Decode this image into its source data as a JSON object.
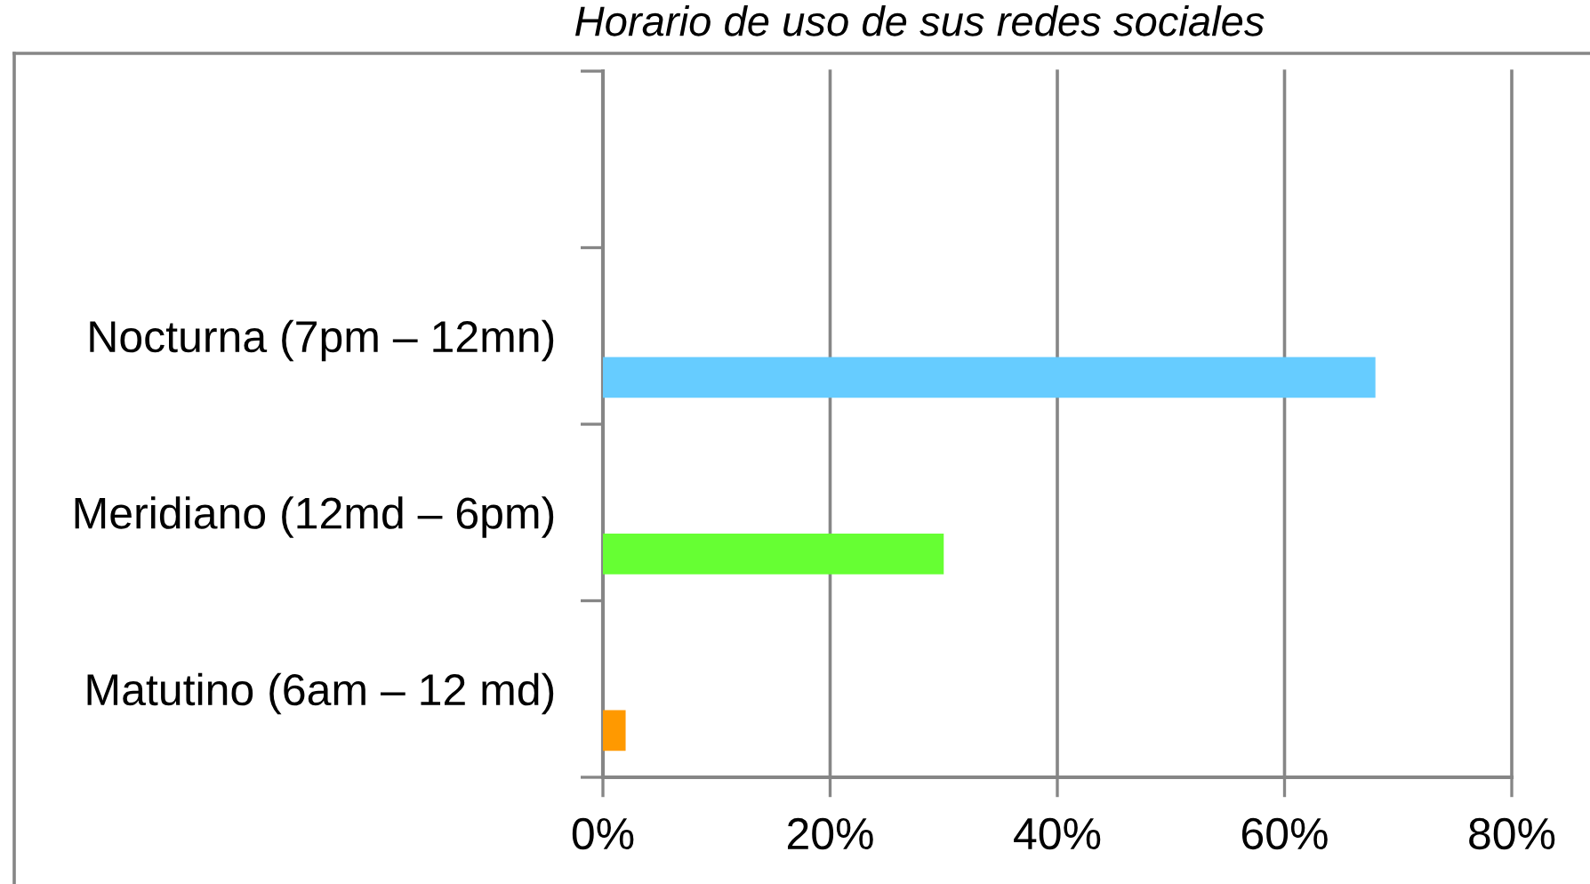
{
  "chart_data": {
    "type": "bar",
    "orientation": "horizontal",
    "title": "Horario de uso de sus redes sociales",
    "categories": [
      null,
      "Nocturna (7pm – 12mn)",
      "Meridiano (12md – 6pm)",
      "Matutino (6am – 12 md)"
    ],
    "values": [
      null,
      68,
      30,
      2
    ],
    "colors": [
      null,
      "#66ccff",
      "#66ff33",
      "#ff9900"
    ],
    "xlim": [
      0,
      80
    ],
    "xticks": [
      {
        "value": 0,
        "label": "0%"
      },
      {
        "value": 20,
        "label": "20%"
      },
      {
        "value": 40,
        "label": "40%"
      },
      {
        "value": 60,
        "label": "60%"
      },
      {
        "value": 80,
        "label": "80%"
      }
    ],
    "grid": "x"
  }
}
